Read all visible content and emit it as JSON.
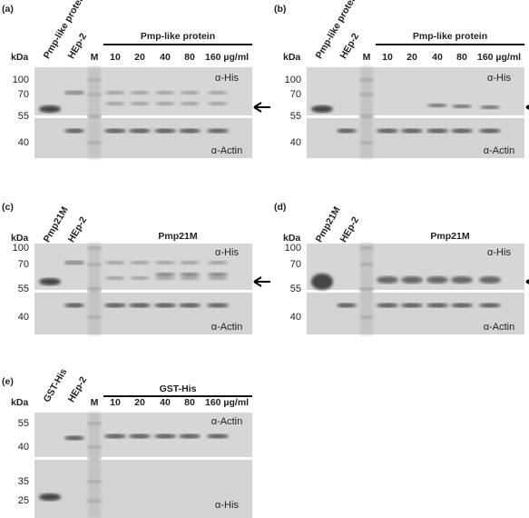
{
  "panels": [
    {
      "label": "(a)",
      "unit": "kDa",
      "sample": "Pmp-like protein",
      "cells": "HEp-2",
      "marker": "M",
      "group": "Pmp-like protein",
      "doses": [
        "10",
        "20",
        "40",
        "80",
        "160 µg/ml"
      ],
      "upper_ladder": [
        "100",
        "70",
        "55"
      ],
      "lower_ladder": [
        "40"
      ],
      "upper_antibody": "α-His",
      "lower_antibody": "α-Actin"
    },
    {
      "label": "(b)",
      "unit": "kDa",
      "sample": "Pmp-like protein",
      "cells": "HEp-2",
      "marker": "M",
      "group": "Pmp-like protein",
      "doses": [
        "10",
        "20",
        "40",
        "80",
        "160 µg/ml"
      ],
      "upper_ladder": [
        "100",
        "70",
        "55"
      ],
      "lower_ladder": [
        "40"
      ],
      "upper_antibody": "α-His",
      "lower_antibody": "α-Actin"
    },
    {
      "label": "(c)",
      "unit": "kDa",
      "sample": "Pmp21M",
      "cells": "HEp-2",
      "marker": "M",
      "group": "Pmp21M",
      "doses": [
        "10",
        "20",
        "40",
        "80",
        "160 µg/ml"
      ],
      "upper_ladder": [
        "100",
        "70",
        "55"
      ],
      "lower_ladder": [
        "40"
      ],
      "upper_antibody": "α-His",
      "lower_antibody": "α-Actin"
    },
    {
      "label": "(d)",
      "unit": "kDa",
      "sample": "Pmp21M",
      "cells": "HEp-2",
      "marker": "M",
      "group": "Pmp21M",
      "doses": [
        "10",
        "20",
        "40",
        "80",
        "160 µg/ml"
      ],
      "upper_ladder": [
        "100",
        "70",
        "55"
      ],
      "lower_ladder": [
        "40"
      ],
      "upper_antibody": "α-His",
      "lower_antibody": "α-Actin"
    },
    {
      "label": "(e)",
      "unit": "kDa",
      "sample": "GST-His",
      "cells": "HEp-2",
      "marker": "M",
      "group": "GST-His",
      "doses": [
        "10",
        "20",
        "40",
        "80",
        "160 µg/ml"
      ],
      "upper_ladder": [
        "55",
        "40"
      ],
      "lower_ladder": [
        "35",
        "25"
      ],
      "upper_antibody": "α-Actin",
      "lower_antibody": "α-His"
    }
  ]
}
